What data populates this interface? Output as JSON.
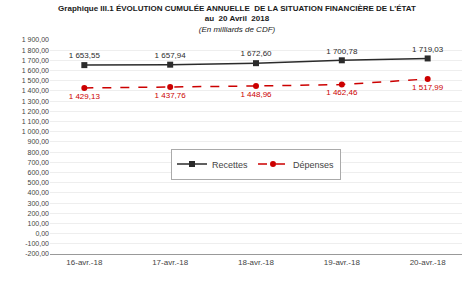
{
  "chart_data": {
    "type": "line",
    "title": "Graphique III.1 ÉVOLUTION CUMULÉE ANNUELLE  DE LA SITUATION FINANCIÈRE DE L'ÉTAT",
    "subtitle": [
      "au  20 Avril  2018",
      "(En milliards de CDF)"
    ],
    "categories": [
      "16-avr.-18",
      "17-avr.-18",
      "18-avr.-18",
      "19-avr.-18",
      "20-avr.-18"
    ],
    "series": [
      {
        "name": "Recettes",
        "color": "#2b2b2b",
        "marker": "square",
        "line_style": "solid",
        "values": [
          1653.55,
          1657.94,
          1672.6,
          1700.78,
          1719.03
        ],
        "value_labels": [
          "1 653,55",
          "1 657,94",
          "1 672,60",
          "1 700,78",
          "1 719,03"
        ]
      },
      {
        "name": "Dépenses",
        "color": "#cc0000",
        "marker": "circle",
        "line_style": "dashed",
        "values": [
          1429.13,
          1437.76,
          1448.96,
          1462.46,
          1517.99
        ],
        "value_labels": [
          "1 429,13",
          "1 437,76",
          "1 448,96",
          "1 462,46",
          "1 517,99"
        ]
      }
    ],
    "ylim": [
      -200,
      1900
    ],
    "yticks": [
      {
        "value": -200,
        "label": "-200,00"
      },
      {
        "value": -100,
        "label": "-100,00"
      },
      {
        "value": 0,
        "label": "0,00"
      },
      {
        "value": 100,
        "label": "100,00"
      },
      {
        "value": 200,
        "label": "200,00"
      },
      {
        "value": 300,
        "label": "300,00"
      },
      {
        "value": 400,
        "label": "400,00"
      },
      {
        "value": 500,
        "label": "500,00"
      },
      {
        "value": 600,
        "label": "600,00"
      },
      {
        "value": 700,
        "label": "700,00"
      },
      {
        "value": 800,
        "label": "800,00"
      },
      {
        "value": 900,
        "label": "900,00"
      },
      {
        "value": 1000,
        "label": "1 000,00"
      },
      {
        "value": 1100,
        "label": "1 100,00"
      },
      {
        "value": 1200,
        "label": "1 200,00"
      },
      {
        "value": 1300,
        "label": "1 300,00"
      },
      {
        "value": 1400,
        "label": "1 400,00"
      },
      {
        "value": 1500,
        "label": "1 500,00"
      },
      {
        "value": 1600,
        "label": "1 600,00"
      },
      {
        "value": 1700,
        "label": "1 700,00"
      },
      {
        "value": 1800,
        "label": "1 800,00"
      },
      {
        "value": 1900,
        "label": "1 900,00"
      }
    ],
    "grid": true,
    "legend": "center",
    "data_labels": true
  }
}
